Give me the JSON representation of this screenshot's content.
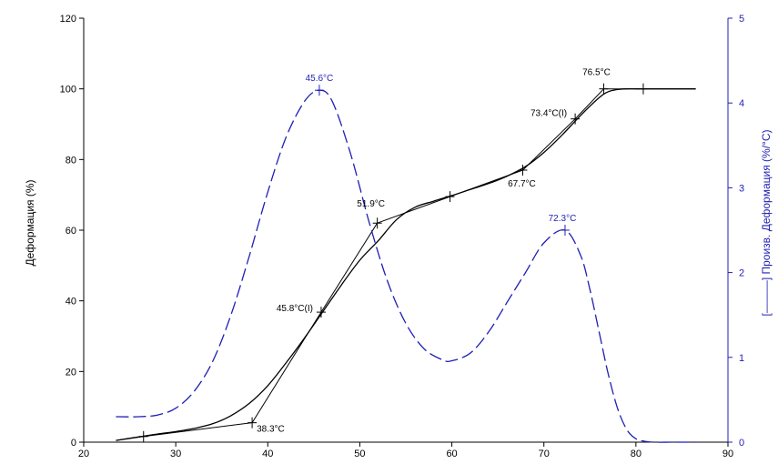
{
  "chart_data": {
    "type": "line",
    "ylabel": "Деформация (%)",
    "y2label": "[———] Произв. Деформация (%/°C)",
    "xlim": [
      20,
      90
    ],
    "ylim": [
      0,
      120
    ],
    "y2lim": [
      0,
      5
    ],
    "x_ticks": [
      "20",
      "30",
      "40",
      "50",
      "60",
      "70",
      "80",
      "90"
    ],
    "y_ticks": [
      "0",
      "20",
      "40",
      "60",
      "80",
      "100",
      "120"
    ],
    "y2_ticks": [
      "0",
      "1",
      "2",
      "3",
      "4",
      "5"
    ],
    "colors": {
      "primary": "#000000",
      "secondary": "#1f1fb4",
      "axis": "#000000",
      "axis2": "#1f1fb4"
    },
    "series": [
      {
        "axis": "left",
        "style": "solid",
        "x": [
          23.5,
          26,
          28,
          30,
          32,
          34,
          36,
          38,
          40,
          42,
          44,
          46,
          48,
          50,
          52,
          54,
          56,
          58,
          60,
          62,
          64,
          66,
          68,
          70,
          72,
          74,
          76,
          77,
          78,
          79,
          80,
          81,
          82,
          84,
          86.5
        ],
        "y": [
          0.5,
          1.5,
          2.3,
          3.0,
          3.9,
          5.2,
          7.5,
          11,
          16,
          22.5,
          29.5,
          37,
          44.5,
          51.5,
          57,
          63,
          66.5,
          68.2,
          69.8,
          71.5,
          73.2,
          75.3,
          78,
          82,
          87,
          92.5,
          97.5,
          99.2,
          99.8,
          100,
          100,
          100,
          100,
          100,
          100
        ]
      },
      {
        "axis": "right",
        "style": "dashed",
        "x": [
          23.5,
          26,
          28,
          30,
          32,
          34,
          36,
          38,
          40,
          42,
          44,
          45.6,
          47,
          49,
          51,
          53,
          55,
          57,
          59,
          60,
          62,
          64,
          66,
          68,
          70,
          72.3,
          74,
          75,
          76,
          77,
          78,
          79,
          80,
          81,
          82,
          84,
          86.5
        ],
        "y": [
          0.3,
          0.3,
          0.32,
          0.4,
          0.6,
          0.95,
          1.5,
          2.2,
          2.95,
          3.6,
          4.02,
          4.15,
          4.02,
          3.4,
          2.6,
          1.9,
          1.4,
          1.1,
          0.97,
          0.96,
          1.05,
          1.3,
          1.65,
          2.0,
          2.35,
          2.5,
          2.2,
          1.8,
          1.3,
          0.8,
          0.4,
          0.15,
          0.04,
          0.01,
          0,
          0,
          0
        ]
      }
    ],
    "tangents": [
      {
        "x": [
          23.5,
          26.5,
          38.3
        ],
        "y": [
          0.5,
          1.6,
          5.5
        ]
      },
      {
        "x": [
          38.3,
          45.8,
          51.9
        ],
        "y": [
          5.5,
          36.8,
          62
        ]
      },
      {
        "x": [
          51.9,
          59.8,
          67.7
        ],
        "y": [
          62,
          69.5,
          77
        ]
      },
      {
        "x": [
          67.7,
          73.4,
          76.5
        ],
        "y": [
          77,
          91.5,
          100
        ]
      },
      {
        "x": [
          76.5,
          80.8,
          86.5
        ],
        "y": [
          100,
          100,
          100
        ]
      }
    ],
    "annotations": [
      {
        "text": "38.3°C",
        "x": 38.3,
        "y": 5.5,
        "axis": "left",
        "color": "primary",
        "anchor": "start",
        "dx": 5,
        "dy": 10
      },
      {
        "text": "45.8°C(I)",
        "x": 45.8,
        "y": 36.8,
        "axis": "left",
        "color": "primary",
        "anchor": "end",
        "dx": -9,
        "dy": -1
      },
      {
        "text": "51.9°C",
        "x": 51.9,
        "y": 62,
        "axis": "left",
        "color": "primary",
        "anchor": "middle",
        "dx": -7,
        "dy": -18
      },
      {
        "text": "67.7°C",
        "x": 67.7,
        "y": 77,
        "axis": "left",
        "color": "primary",
        "anchor": "middle",
        "dx": -1,
        "dy": 18
      },
      {
        "text": "73.4°C(I)",
        "x": 73.4,
        "y": 91.5,
        "axis": "left",
        "color": "primary",
        "anchor": "end",
        "dx": -9,
        "dy": -3
      },
      {
        "text": "76.5°C",
        "x": 76.5,
        "y": 100,
        "axis": "left",
        "color": "primary",
        "anchor": "middle",
        "dx": -8,
        "dy": -15
      },
      {
        "text": "45.6°C",
        "x": 45.6,
        "y": 4.15,
        "axis": "right",
        "color": "secondary",
        "anchor": "middle",
        "dx": 0,
        "dy": -10
      },
      {
        "text": "72.3°C",
        "x": 72.3,
        "y": 2.5,
        "axis": "right",
        "color": "secondary",
        "anchor": "middle",
        "dx": -3,
        "dy": -10
      }
    ],
    "markers": [
      {
        "x": 26.5,
        "y": 1.6,
        "axis": "left"
      },
      {
        "x": 38.3,
        "y": 5.5,
        "axis": "left"
      },
      {
        "x": 45.8,
        "y": 36.8,
        "axis": "left"
      },
      {
        "x": 51.9,
        "y": 62,
        "axis": "left"
      },
      {
        "x": 59.8,
        "y": 69.5,
        "axis": "left"
      },
      {
        "x": 67.7,
        "y": 77,
        "axis": "left"
      },
      {
        "x": 73.4,
        "y": 91.5,
        "axis": "left"
      },
      {
        "x": 76.5,
        "y": 100,
        "axis": "left"
      },
      {
        "x": 80.8,
        "y": 100,
        "axis": "left"
      },
      {
        "x": 45.6,
        "y": 4.15,
        "axis": "right"
      },
      {
        "x": 72.3,
        "y": 2.5,
        "axis": "right"
      }
    ]
  }
}
